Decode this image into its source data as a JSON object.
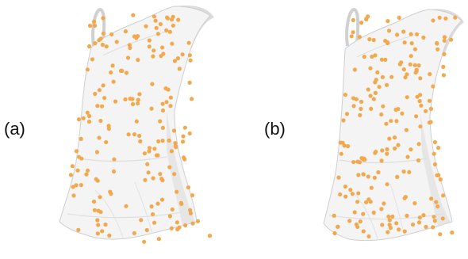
{
  "panels": [
    {
      "label": "(a)"
    },
    {
      "label": "(b)"
    }
  ],
  "colors": {
    "dress_fill": "#f3f3f3",
    "dress_shadow": "#d9d9d9",
    "dress_edge": "#c8c8c8",
    "point": "#f2a94e"
  }
}
